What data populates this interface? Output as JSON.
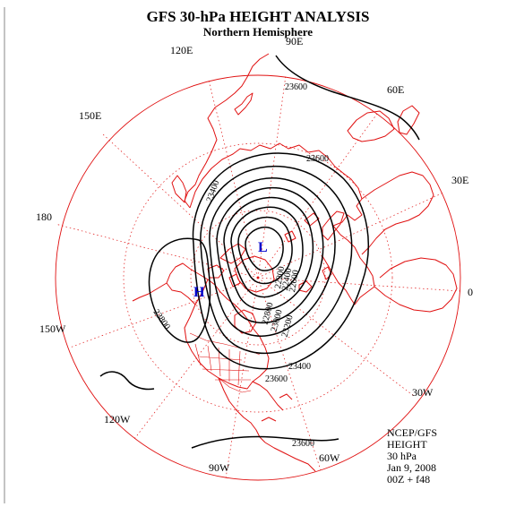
{
  "title": "GFS 30-hPa HEIGHT ANALYSIS",
  "subtitle": "Northern Hemisphere",
  "longitude_labels": [
    {
      "text": "90E"
    },
    {
      "text": "60E"
    },
    {
      "text": "30E"
    },
    {
      "text": "0"
    },
    {
      "text": "30W"
    },
    {
      "text": "60W"
    },
    {
      "text": "90W"
    },
    {
      "text": "120W"
    },
    {
      "text": "150W"
    },
    {
      "text": "180"
    },
    {
      "text": "150E"
    },
    {
      "text": "120E"
    }
  ],
  "contour_labels": [
    {
      "text": "23600"
    },
    {
      "text": "23600"
    },
    {
      "text": "23400"
    },
    {
      "text": "23800"
    },
    {
      "text": "22200"
    },
    {
      "text": "22400"
    },
    {
      "text": "22600"
    },
    {
      "text": "22800"
    },
    {
      "text": "23000"
    },
    {
      "text": "23200"
    },
    {
      "text": "23400"
    },
    {
      "text": "23600"
    },
    {
      "text": "23600"
    }
  ],
  "centers": [
    {
      "symbol": "L",
      "meaning": "low"
    },
    {
      "symbol": "H",
      "meaning": "high"
    }
  ],
  "info_block": [
    "NCEP/GFS",
    "HEIGHT",
    "30 hPa",
    "Jan 9, 2008",
    "00Z + f48"
  ],
  "colors": {
    "map_lines": "#e01010",
    "contours": "#000000",
    "centers": "#0000cc"
  }
}
